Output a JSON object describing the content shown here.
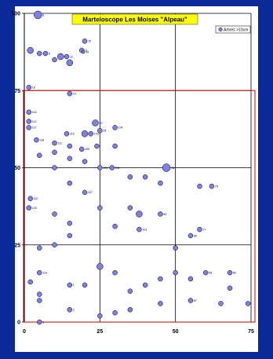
{
  "chart_data": {
    "type": "scatter",
    "title": "Marteloscope Les Moises \"Alpeau\"",
    "xlabel": "",
    "ylabel": "",
    "xlim": [
      0,
      75
    ],
    "ylim": [
      0,
      100
    ],
    "x_ticks": [
      "0",
      "25",
      "50",
      "75"
    ],
    "y_ticks": [
      "0",
      "25",
      "50",
      "75",
      "100"
    ],
    "grid": true,
    "legend": {
      "position": "top-right",
      "entries": [
        "Arbres >10cm"
      ]
    },
    "colors": {
      "marker_fill": "#7f7fe6",
      "marker_stroke": "#000000",
      "frame": "#0a2a9c",
      "rect": "#cc0000"
    },
    "highlight_rect": {
      "x": [
        0,
        75
      ],
      "y": [
        0,
        75
      ]
    },
    "series": [
      {
        "name": "Arbres >10cm",
        "points": [
          {
            "x": 4.5,
            "y": 99.5,
            "r": 5,
            "label": "8"
          },
          {
            "x": 2,
            "y": 88,
            "r": 4,
            "label": ""
          },
          {
            "x": 5,
            "y": 87,
            "r": 3,
            "label": "7"
          },
          {
            "x": 7,
            "y": 87,
            "r": 3,
            "label": "6"
          },
          {
            "x": 12,
            "y": 86,
            "r": 4,
            "label": "10"
          },
          {
            "x": 14,
            "y": 86,
            "r": 3,
            "label": "12"
          },
          {
            "x": 10,
            "y": 85,
            "r": 3,
            "label": ""
          },
          {
            "x": 15,
            "y": 84,
            "r": 4,
            "label": ""
          },
          {
            "x": 20,
            "y": 91,
            "r": 3,
            "label": "15"
          },
          {
            "x": 19,
            "y": 88,
            "r": 3,
            "label": "11"
          },
          {
            "x": 19.5,
            "y": 87.5,
            "r": 2,
            "label": "14"
          },
          {
            "x": 1.5,
            "y": 76,
            "r": 3,
            "label": "18"
          },
          {
            "x": 15,
            "y": 74,
            "r": 3,
            "label": "19"
          },
          {
            "x": 1.5,
            "y": 68,
            "r": 3,
            "label": "116"
          },
          {
            "x": 1.5,
            "y": 65,
            "r": 3,
            "label": "112"
          },
          {
            "x": 1.5,
            "y": 63,
            "r": 3,
            "label": "117"
          },
          {
            "x": 23.5,
            "y": 64.5,
            "r": 4,
            "label": "20"
          },
          {
            "x": 25,
            "y": 62,
            "r": 3,
            "label": "26"
          },
          {
            "x": 30,
            "y": 63,
            "r": 3,
            "label": "104"
          },
          {
            "x": 20,
            "y": 61,
            "r": 4,
            "label": ""
          },
          {
            "x": 22,
            "y": 61,
            "r": 3,
            "label": "103"
          },
          {
            "x": 14,
            "y": 61,
            "r": 3,
            "label": "119"
          },
          {
            "x": 4,
            "y": 59,
            "r": 3,
            "label": "118"
          },
          {
            "x": 10,
            "y": 58,
            "r": 3,
            "label": "111"
          },
          {
            "x": 19,
            "y": 56,
            "r": 3,
            "label": "109"
          },
          {
            "x": 15,
            "y": 57,
            "r": 3,
            "label": ""
          },
          {
            "x": 30,
            "y": 57,
            "r": 3,
            "label": ""
          },
          {
            "x": 24,
            "y": 57,
            "r": 3,
            "label": ""
          },
          {
            "x": 10,
            "y": 55,
            "r": 3,
            "label": ""
          },
          {
            "x": 5,
            "y": 54,
            "r": 3,
            "label": ""
          },
          {
            "x": 15,
            "y": 53,
            "r": 3,
            "label": ""
          },
          {
            "x": 20,
            "y": 52,
            "r": 3,
            "label": ""
          },
          {
            "x": 10,
            "y": 50,
            "r": 3,
            "label": ""
          },
          {
            "x": 25,
            "y": 50,
            "r": 3,
            "label": "126"
          },
          {
            "x": 29,
            "y": 50,
            "r": 3,
            "label": "131"
          },
          {
            "x": 47,
            "y": 50,
            "r": 5,
            "label": "78"
          },
          {
            "x": 40,
            "y": 47,
            "r": 3,
            "label": ""
          },
          {
            "x": 35,
            "y": 47,
            "r": 3,
            "label": ""
          },
          {
            "x": 45,
            "y": 45,
            "r": 3,
            "label": ""
          },
          {
            "x": 15,
            "y": 45,
            "r": 3,
            "label": ""
          },
          {
            "x": 20,
            "y": 42,
            "r": 3,
            "label": "127"
          },
          {
            "x": 2,
            "y": 40,
            "r": 3,
            "label": "110"
          },
          {
            "x": 1.5,
            "y": 37,
            "r": 3,
            "label": "120"
          },
          {
            "x": 10,
            "y": 35,
            "r": 3,
            "label": ""
          },
          {
            "x": 25,
            "y": 37,
            "r": 3,
            "label": ""
          },
          {
            "x": 35,
            "y": 37,
            "r": 3,
            "label": ""
          },
          {
            "x": 38,
            "y": 35,
            "r": 4,
            "label": ""
          },
          {
            "x": 45,
            "y": 35,
            "r": 3,
            "label": "83"
          },
          {
            "x": 58,
            "y": 44,
            "r": 3,
            "label": ""
          },
          {
            "x": 62,
            "y": 44,
            "r": 3,
            "label": "75"
          },
          {
            "x": 15,
            "y": 32,
            "r": 3,
            "label": ""
          },
          {
            "x": 30,
            "y": 31,
            "r": 3,
            "label": ""
          },
          {
            "x": 38,
            "y": 30,
            "r": 3,
            "label": "101"
          },
          {
            "x": 58,
            "y": 30,
            "r": 3,
            "label": "77"
          },
          {
            "x": 55,
            "y": 28,
            "r": 3,
            "label": "85"
          },
          {
            "x": 50,
            "y": 24,
            "r": 3,
            "label": ""
          },
          {
            "x": 5,
            "y": 24,
            "r": 3,
            "label": ""
          },
          {
            "x": 10,
            "y": 25,
            "r": 3,
            "label": ""
          },
          {
            "x": 15,
            "y": 28,
            "r": 3,
            "label": ""
          },
          {
            "x": 25,
            "y": 18,
            "r": 4,
            "label": ""
          },
          {
            "x": 30,
            "y": 16,
            "r": 3,
            "label": ""
          },
          {
            "x": 5,
            "y": 16,
            "r": 3,
            "label": "114"
          },
          {
            "x": 2,
            "y": 13,
            "r": 3,
            "label": ""
          },
          {
            "x": 5,
            "y": 9,
            "r": 3,
            "label": ""
          },
          {
            "x": 15,
            "y": 12,
            "r": 3,
            "label": "1"
          },
          {
            "x": 20,
            "y": 12,
            "r": 3,
            "label": ""
          },
          {
            "x": 35,
            "y": 10,
            "r": 3,
            "label": ""
          },
          {
            "x": 40,
            "y": 12,
            "r": 3,
            "label": ""
          },
          {
            "x": 45,
            "y": 14,
            "r": 3,
            "label": ""
          },
          {
            "x": 50,
            "y": 16,
            "r": 3,
            "label": ""
          },
          {
            "x": 55,
            "y": 14,
            "r": 3,
            "label": ""
          },
          {
            "x": 60,
            "y": 16,
            "r": 3,
            "label": "59"
          },
          {
            "x": 68,
            "y": 16,
            "r": 3,
            "label": "60"
          },
          {
            "x": 68,
            "y": 11,
            "r": 3,
            "label": ""
          },
          {
            "x": 74,
            "y": 6,
            "r": 3,
            "label": ""
          },
          {
            "x": 65,
            "y": 6,
            "r": 3,
            "label": ""
          },
          {
            "x": 55,
            "y": 7,
            "r": 3,
            "label": "67"
          },
          {
            "x": 45,
            "y": 6,
            "r": 3,
            "label": ""
          },
          {
            "x": 35,
            "y": 4,
            "r": 3,
            "label": ""
          },
          {
            "x": 30,
            "y": 3,
            "r": 3,
            "label": ""
          },
          {
            "x": 25,
            "y": 2,
            "r": 3,
            "label": ""
          },
          {
            "x": 15,
            "y": 4,
            "r": 3,
            "label": "2"
          },
          {
            "x": 5,
            "y": 7,
            "r": 3,
            "label": ""
          },
          {
            "x": 5,
            "y": 0,
            "r": 3,
            "label": "1"
          }
        ]
      }
    ]
  }
}
